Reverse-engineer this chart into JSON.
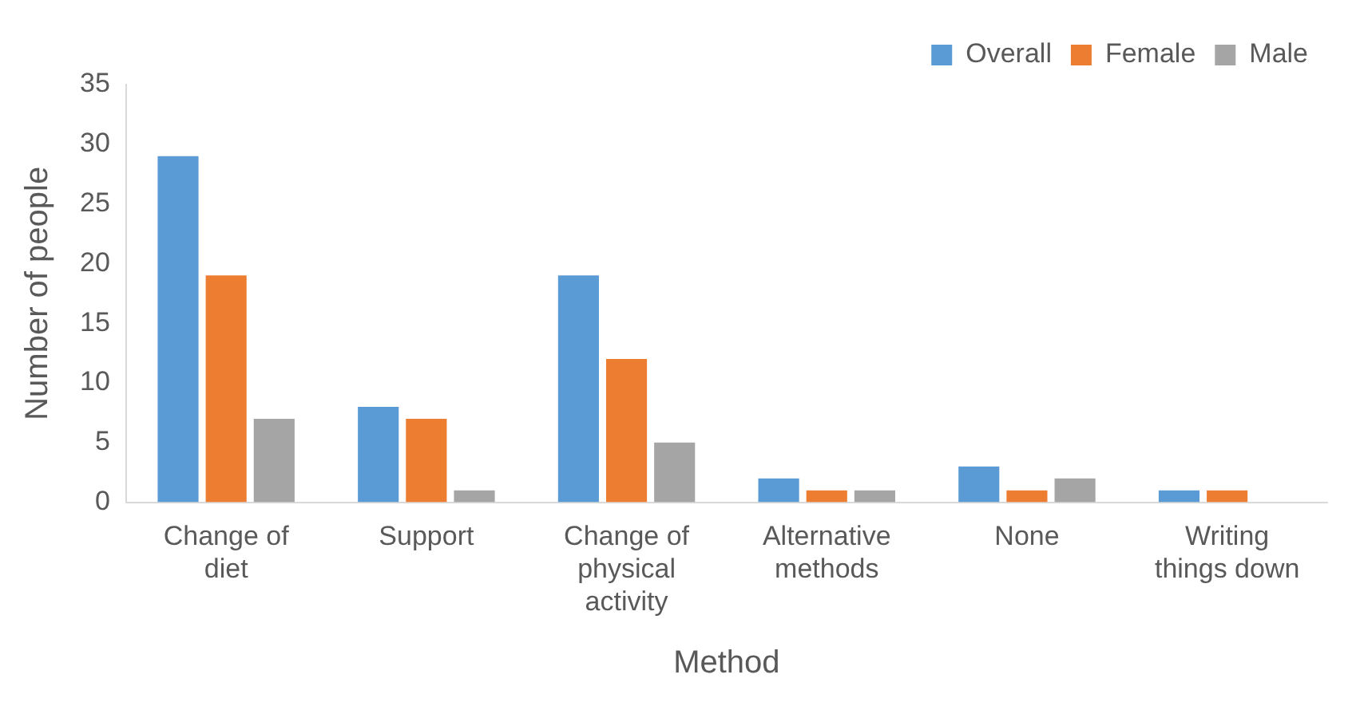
{
  "chart_data": {
    "type": "bar",
    "xlabel": "Method",
    "ylabel": "Number of people",
    "categories": [
      "Change of diet",
      "Support",
      "Change of physical activity",
      "Alternative methods",
      "None",
      "Writing things down"
    ],
    "series": [
      {
        "name": "Overall",
        "color": "#5b9bd5",
        "values": [
          29,
          8,
          19,
          2,
          3,
          1
        ]
      },
      {
        "name": "Female",
        "color": "#ed7d31",
        "values": [
          19,
          7,
          12,
          1,
          1,
          1
        ]
      },
      {
        "name": "Male",
        "color": "#a5a5a5",
        "values": [
          7,
          1,
          5,
          1,
          2,
          0
        ]
      }
    ],
    "ylim": [
      0,
      35
    ],
    "yticks": [
      0,
      5,
      10,
      15,
      20,
      25,
      30,
      35
    ],
    "grid": false,
    "legend": "top right"
  }
}
